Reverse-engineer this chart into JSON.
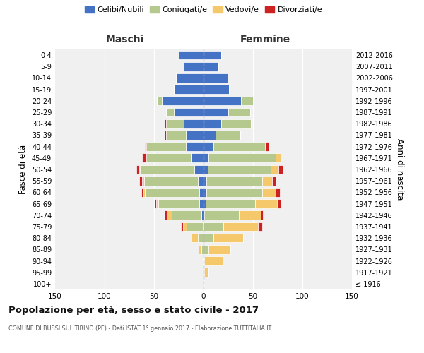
{
  "age_groups": [
    "100+",
    "95-99",
    "90-94",
    "85-89",
    "80-84",
    "75-79",
    "70-74",
    "65-69",
    "60-64",
    "55-59",
    "50-54",
    "45-49",
    "40-44",
    "35-39",
    "30-34",
    "25-29",
    "20-24",
    "15-19",
    "10-14",
    "5-9",
    "0-4"
  ],
  "birth_years": [
    "≤ 1916",
    "1917-1921",
    "1922-1926",
    "1927-1931",
    "1932-1936",
    "1937-1941",
    "1942-1946",
    "1947-1951",
    "1952-1956",
    "1957-1961",
    "1962-1966",
    "1967-1971",
    "1972-1976",
    "1977-1981",
    "1982-1986",
    "1987-1991",
    "1992-1996",
    "1997-2001",
    "2002-2006",
    "2007-2011",
    "2012-2016"
  ],
  "maschi": {
    "celibi": [
      0,
      0,
      0,
      0,
      0,
      1,
      2,
      4,
      4,
      6,
      9,
      13,
      18,
      18,
      20,
      30,
      42,
      30,
      28,
      20,
      25
    ],
    "coniugati": [
      0,
      0,
      0,
      2,
      6,
      16,
      30,
      42,
      55,
      54,
      55,
      45,
      40,
      20,
      18,
      8,
      5,
      0,
      0,
      0,
      0
    ],
    "vedovi": [
      0,
      0,
      1,
      3,
      6,
      4,
      5,
      2,
      2,
      2,
      1,
      0,
      0,
      0,
      0,
      0,
      0,
      0,
      0,
      0,
      0
    ],
    "divorziati": [
      0,
      0,
      0,
      0,
      0,
      2,
      2,
      1,
      2,
      3,
      3,
      4,
      1,
      1,
      1,
      0,
      0,
      0,
      0,
      0,
      0
    ]
  },
  "femmine": {
    "nubili": [
      0,
      0,
      0,
      0,
      0,
      0,
      1,
      2,
      3,
      3,
      4,
      5,
      10,
      12,
      18,
      25,
      38,
      26,
      24,
      15,
      18
    ],
    "coniugate": [
      0,
      1,
      1,
      5,
      10,
      20,
      35,
      50,
      56,
      56,
      64,
      68,
      52,
      25,
      30,
      22,
      12,
      0,
      0,
      0,
      0
    ],
    "vedove": [
      1,
      4,
      18,
      22,
      30,
      35,
      22,
      22,
      14,
      10,
      8,
      5,
      0,
      0,
      0,
      0,
      0,
      0,
      0,
      0,
      0
    ],
    "divorziate": [
      0,
      0,
      0,
      0,
      0,
      4,
      2,
      4,
      4,
      4,
      4,
      0,
      4,
      0,
      0,
      0,
      0,
      0,
      0,
      0,
      0
    ]
  },
  "colors": {
    "celibi": "#4472C4",
    "coniugati": "#b5c98e",
    "vedovi": "#f5c96b",
    "divorziati": "#cc2222"
  },
  "xlim": 150,
  "title": "Popolazione per età, sesso e stato civile - 2017",
  "subtitle": "COMUNE DI BUSSI SUL TIRINO (PE) - Dati ISTAT 1° gennaio 2017 - Elaborazione TUTTITALIA.IT",
  "ylabel_left": "Fasce di età",
  "ylabel_right": "Anni di nascita",
  "xlabel_maschi": "Maschi",
  "xlabel_femmine": "Femmine",
  "legend_labels": [
    "Celibi/Nubili",
    "Coniugati/e",
    "Vedovi/e",
    "Divorziati/e"
  ],
  "bg_color": "#ffffff",
  "plot_bg_color": "#f0f0f0"
}
